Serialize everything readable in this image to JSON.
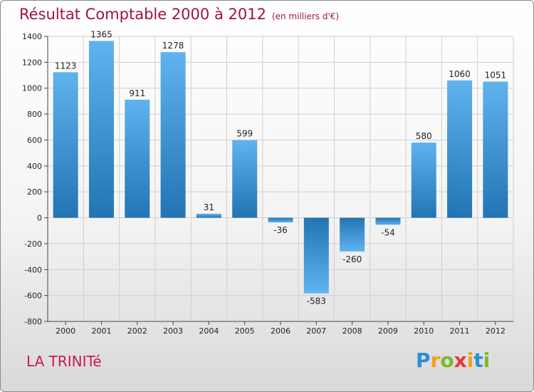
{
  "title": "Résultat Comptable 2000 à 2012",
  "subtitle": "(en milliers d'€)",
  "place": "LA TRINITé",
  "brand": {
    "letters": [
      {
        "ch": "P",
        "color": "#2a8fd6"
      },
      {
        "ch": "r",
        "color": "#f0a020"
      },
      {
        "ch": "o",
        "color": "#7cb82f"
      },
      {
        "ch": "x",
        "color": "#e03a3a"
      },
      {
        "ch": "i",
        "color": "#f0a020"
      },
      {
        "ch": "t",
        "color": "#2a8fd6"
      },
      {
        "ch": "i",
        "color": "#7cb82f"
      }
    ]
  },
  "chart_data": {
    "type": "bar",
    "categories": [
      "2000",
      "2001",
      "2002",
      "2003",
      "2004",
      "2005",
      "2006",
      "2007",
      "2008",
      "2009",
      "2010",
      "2011",
      "2012"
    ],
    "values": [
      1123,
      1365,
      911,
      1278,
      31,
      599,
      -36,
      -583,
      -260,
      -54,
      580,
      1060,
      1051
    ],
    "ylim": [
      -800,
      1400
    ],
    "yticks": [
      -800,
      -600,
      -400,
      -200,
      0,
      200,
      400,
      600,
      800,
      1000,
      1200,
      1400
    ],
    "grid": true,
    "bar_color": "#3f97d9"
  }
}
